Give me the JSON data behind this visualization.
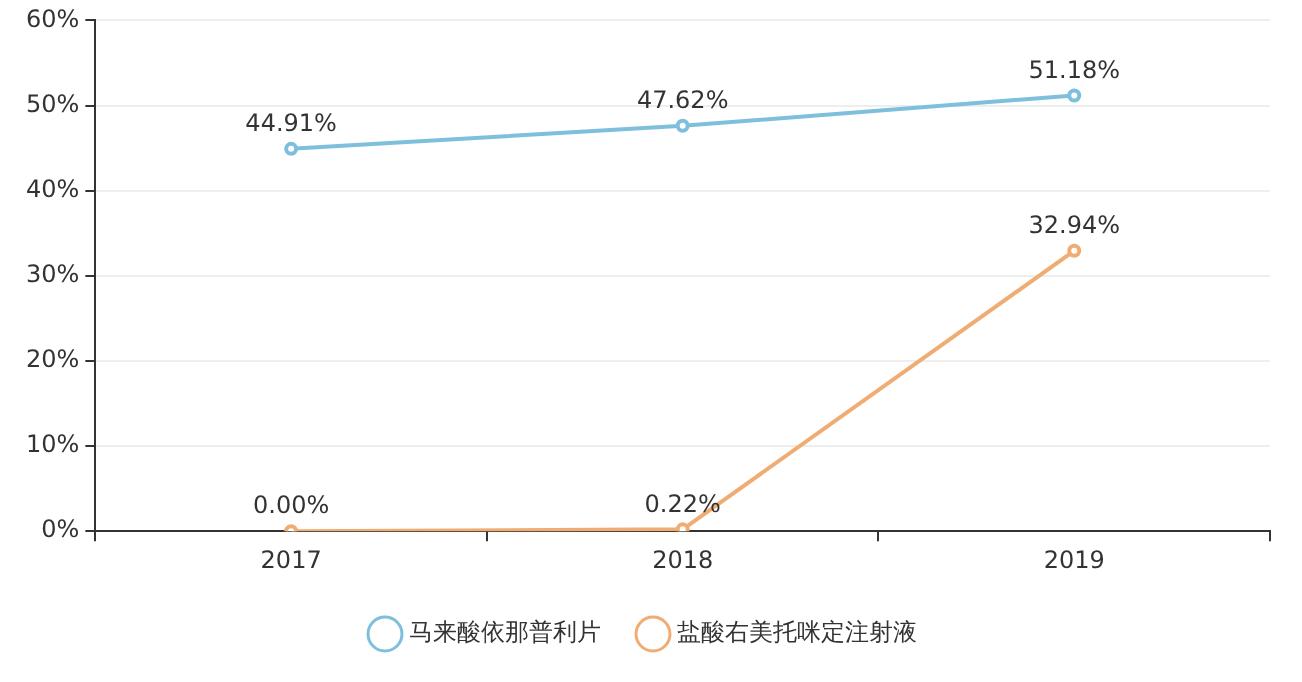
{
  "chart_data": {
    "type": "line",
    "categories": [
      "2017",
      "2018",
      "2019"
    ],
    "series": [
      {
        "name": "马来酸依那普利片",
        "color": "#7ebfdc",
        "values": [
          44.91,
          47.62,
          51.18
        ],
        "value_labels": [
          "44.91%",
          "47.62%",
          "51.18%"
        ]
      },
      {
        "name": "盐酸右美托咪定注射液",
        "color": "#f0ad73",
        "values": [
          0,
          0.22,
          32.94
        ],
        "value_labels": [
          "0.00%",
          "0.22%",
          "32.94%"
        ]
      }
    ],
    "ylim": [
      0,
      60
    ],
    "yticks": [
      {
        "value": 0,
        "label": "0%"
      },
      {
        "value": 10,
        "label": "10%"
      },
      {
        "value": 20,
        "label": "20%"
      },
      {
        "value": 30,
        "label": "30%"
      },
      {
        "value": 40,
        "label": "40%"
      },
      {
        "value": 50,
        "label": "50%"
      },
      {
        "value": 60,
        "label": "60%"
      }
    ],
    "grid": "y",
    "legend": "bottom",
    "marker": "circle",
    "line_style": "solid"
  }
}
